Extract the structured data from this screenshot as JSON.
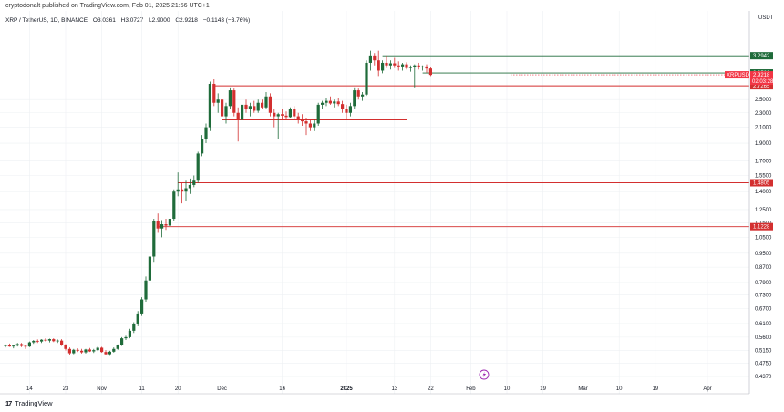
{
  "header": {
    "published_line": "cryptodonalt published on TradingView.com, Feb 01, 2025 21:56 UTC+1"
  },
  "ohlc": {
    "symbol_line": "XRP / TetherUS, 1D, BINANCE",
    "open": "O3.0361",
    "high": "H3.0727",
    "low": "L2.9000",
    "close": "C2.9218",
    "change": "−0.1143 (−3.76%)"
  },
  "footer": {
    "brand": "TradingView",
    "logo": "17"
  },
  "colors": {
    "up": "#1f6b3a",
    "down": "#d32f2f",
    "green_level": "#1f6b3a",
    "red_level": "#d32f2f",
    "grid": "#eef0f3",
    "price_tag": "#f23645",
    "event_icon": "#9c27b0"
  },
  "chart_data": {
    "type": "candlestick",
    "currency_label": "USDT",
    "y_scale": "log",
    "ylim": [
      0.42,
      3.85
    ],
    "y_ticks": [
      "2.5000",
      "2.3000",
      "2.1000",
      "1.9000",
      "1.7000",
      "1.5500",
      "1.4000",
      "1.2500",
      "1.1500",
      "1.0500",
      "0.9500",
      "0.8700",
      "0.7900",
      "0.7300",
      "0.6700",
      "0.6100",
      "0.5600",
      "0.5150",
      "0.4750",
      "0.4370"
    ],
    "x_ticks": [
      {
        "label": "14",
        "bar": 6
      },
      {
        "label": "23",
        "bar": 15
      },
      {
        "label": "Nov",
        "bar": 24
      },
      {
        "label": "11",
        "bar": 34
      },
      {
        "label": "20",
        "bar": 43
      },
      {
        "label": "Dec",
        "bar": 54
      },
      {
        "label": "16",
        "bar": 69
      },
      {
        "label": "2025",
        "bar": 85
      },
      {
        "label": "13",
        "bar": 97
      },
      {
        "label": "22",
        "bar": 106
      },
      {
        "label": "Feb",
        "bar": 116
      },
      {
        "label": "10",
        "bar": 125
      },
      {
        "label": "19",
        "bar": 134
      },
      {
        "label": "Mar",
        "bar": 144
      },
      {
        "label": "10",
        "bar": 153
      },
      {
        "label": "19",
        "bar": 162
      },
      {
        "label": "Apr",
        "bar": 175
      }
    ],
    "candles": [
      [
        0.53,
        0.535,
        0.525,
        0.532
      ],
      [
        0.532,
        0.538,
        0.527,
        0.528
      ],
      [
        0.528,
        0.534,
        0.522,
        0.531
      ],
      [
        0.531,
        0.54,
        0.528,
        0.536
      ],
      [
        0.536,
        0.54,
        0.526,
        0.53
      ],
      [
        0.53,
        0.534,
        0.52,
        0.528
      ],
      [
        0.528,
        0.545,
        0.526,
        0.542
      ],
      [
        0.542,
        0.55,
        0.537,
        0.547
      ],
      [
        0.547,
        0.552,
        0.54,
        0.545
      ],
      [
        0.545,
        0.553,
        0.54,
        0.551
      ],
      [
        0.551,
        0.556,
        0.545,
        0.548
      ],
      [
        0.548,
        0.555,
        0.542,
        0.553
      ],
      [
        0.553,
        0.556,
        0.543,
        0.546
      ],
      [
        0.546,
        0.552,
        0.54,
        0.548
      ],
      [
        0.548,
        0.553,
        0.53,
        0.533
      ],
      [
        0.533,
        0.536,
        0.515,
        0.52
      ],
      [
        0.52,
        0.525,
        0.5,
        0.506
      ],
      [
        0.506,
        0.52,
        0.503,
        0.517
      ],
      [
        0.517,
        0.522,
        0.51,
        0.514
      ],
      [
        0.514,
        0.52,
        0.505,
        0.509
      ],
      [
        0.509,
        0.52,
        0.505,
        0.518
      ],
      [
        0.518,
        0.523,
        0.51,
        0.512
      ],
      [
        0.512,
        0.52,
        0.507,
        0.516
      ],
      [
        0.516,
        0.528,
        0.513,
        0.524
      ],
      [
        0.524,
        0.527,
        0.508,
        0.51
      ],
      [
        0.51,
        0.516,
        0.5,
        0.503
      ],
      [
        0.503,
        0.514,
        0.498,
        0.511
      ],
      [
        0.511,
        0.525,
        0.508,
        0.52
      ],
      [
        0.52,
        0.535,
        0.517,
        0.532
      ],
      [
        0.532,
        0.56,
        0.53,
        0.556
      ],
      [
        0.556,
        0.565,
        0.55,
        0.56
      ],
      [
        0.56,
        0.59,
        0.556,
        0.583
      ],
      [
        0.583,
        0.615,
        0.575,
        0.61
      ],
      [
        0.61,
        0.66,
        0.6,
        0.65
      ],
      [
        0.65,
        0.72,
        0.64,
        0.71
      ],
      [
        0.71,
        0.82,
        0.7,
        0.8
      ],
      [
        0.8,
        0.95,
        0.78,
        0.93
      ],
      [
        0.93,
        1.18,
        0.9,
        1.16
      ],
      [
        1.16,
        1.22,
        1.08,
        1.11
      ],
      [
        1.11,
        1.17,
        1.05,
        1.14
      ],
      [
        1.14,
        1.18,
        1.1,
        1.13
      ],
      [
        1.13,
        1.2,
        1.1,
        1.18
      ],
      [
        1.18,
        1.42,
        1.16,
        1.4
      ],
      [
        1.4,
        1.58,
        1.36,
        1.42
      ],
      [
        1.42,
        1.48,
        1.3,
        1.4
      ],
      [
        1.4,
        1.5,
        1.32,
        1.43
      ],
      [
        1.43,
        1.52,
        1.38,
        1.46
      ],
      [
        1.46,
        1.55,
        1.44,
        1.5
      ],
      [
        1.5,
        1.8,
        1.48,
        1.78
      ],
      [
        1.78,
        2.0,
        1.75,
        1.95
      ],
      [
        1.95,
        2.15,
        1.9,
        2.1
      ],
      [
        2.1,
        2.8,
        2.05,
        2.76
      ],
      [
        2.76,
        2.84,
        2.4,
        2.45
      ],
      [
        2.45,
        2.6,
        2.3,
        2.5
      ],
      [
        2.5,
        2.55,
        2.2,
        2.25
      ],
      [
        2.25,
        2.45,
        2.15,
        2.4
      ],
      [
        2.4,
        2.7,
        2.35,
        2.65
      ],
      [
        2.65,
        2.68,
        2.25,
        2.3
      ],
      [
        2.3,
        2.38,
        1.92,
        2.2
      ],
      [
        2.2,
        2.45,
        2.15,
        2.42
      ],
      [
        2.42,
        2.5,
        2.3,
        2.35
      ],
      [
        2.35,
        2.45,
        2.25,
        2.4
      ],
      [
        2.4,
        2.48,
        2.3,
        2.33
      ],
      [
        2.33,
        2.5,
        2.3,
        2.45
      ],
      [
        2.45,
        2.5,
        2.35,
        2.38
      ],
      [
        2.38,
        2.62,
        2.35,
        2.55
      ],
      [
        2.55,
        2.6,
        2.25,
        2.3
      ],
      [
        2.3,
        2.35,
        2.1,
        2.25
      ],
      [
        2.25,
        2.3,
        1.95,
        2.28
      ],
      [
        2.28,
        2.35,
        2.2,
        2.26
      ],
      [
        2.26,
        2.32,
        2.2,
        2.24
      ],
      [
        2.24,
        2.38,
        2.22,
        2.35
      ],
      [
        2.35,
        2.4,
        2.2,
        2.25
      ],
      [
        2.25,
        2.3,
        2.15,
        2.2
      ],
      [
        2.2,
        2.28,
        2.12,
        2.18
      ],
      [
        2.18,
        2.22,
        2.0,
        2.15
      ],
      [
        2.15,
        2.2,
        2.05,
        2.1
      ],
      [
        2.1,
        2.2,
        2.05,
        2.15
      ],
      [
        2.15,
        2.45,
        2.12,
        2.42
      ],
      [
        2.42,
        2.48,
        2.35,
        2.45
      ],
      [
        2.45,
        2.52,
        2.4,
        2.48
      ],
      [
        2.48,
        2.55,
        2.42,
        2.44
      ],
      [
        2.44,
        2.5,
        2.38,
        2.47
      ],
      [
        2.47,
        2.52,
        2.4,
        2.43
      ],
      [
        2.43,
        2.48,
        2.3,
        2.35
      ],
      [
        2.35,
        2.42,
        2.2,
        2.3
      ],
      [
        2.3,
        2.45,
        2.25,
        2.4
      ],
      [
        2.4,
        2.7,
        2.35,
        2.65
      ],
      [
        2.65,
        2.68,
        2.5,
        2.55
      ],
      [
        2.55,
        2.62,
        2.48,
        2.58
      ],
      [
        2.58,
        3.2,
        2.56,
        3.15
      ],
      [
        3.15,
        3.4,
        3.0,
        3.3
      ],
      [
        3.3,
        3.35,
        3.1,
        3.2
      ],
      [
        3.2,
        3.4,
        2.9,
        3.0
      ],
      [
        3.0,
        3.2,
        2.95,
        3.15
      ],
      [
        3.15,
        3.3,
        3.05,
        3.1
      ],
      [
        3.1,
        3.2,
        3.02,
        3.14
      ],
      [
        3.14,
        3.25,
        3.05,
        3.1
      ],
      [
        3.1,
        3.18,
        3.0,
        3.08
      ],
      [
        3.08,
        3.15,
        3.0,
        3.12
      ],
      [
        3.12,
        3.16,
        3.02,
        3.05
      ],
      [
        3.05,
        3.1,
        2.98,
        3.07
      ],
      [
        3.07,
        3.12,
        2.7,
        3.1
      ],
      [
        3.1,
        3.15,
        3.02,
        3.06
      ],
      [
        3.06,
        3.1,
        3.0,
        3.08
      ],
      [
        3.08,
        3.12,
        2.96,
        3.04
      ],
      [
        3.04,
        3.07,
        2.9,
        2.92
      ]
    ],
    "horizontal_levels": [
      {
        "name": "range-top",
        "price": 2.7265,
        "color": "red",
        "from_bar": 52,
        "to_bar": 200
      },
      {
        "name": "range-bottom",
        "price": 2.2,
        "color": "red",
        "from_bar": 54,
        "to_bar": 100
      },
      {
        "name": "green-top",
        "price": 3.2942,
        "color": "green",
        "from_bar": 94,
        "to_bar": 200
      },
      {
        "name": "green-mid",
        "price": 2.9562,
        "color": "green",
        "from_bar": 104,
        "to_bar": 200
      },
      {
        "name": "support-1",
        "price": 1.4805,
        "color": "red",
        "from_bar": 43,
        "to_bar": 200
      },
      {
        "name": "support-2",
        "price": 1.1228,
        "color": "red",
        "from_bar": 38,
        "to_bar": 200
      }
    ],
    "price_tags": [
      {
        "label": "3.2942",
        "price": 3.2942,
        "color": "green"
      },
      {
        "label": "2.9562",
        "price": 2.9562,
        "color": "green"
      },
      {
        "label": "2.7265",
        "price": 2.7265,
        "color": "red"
      },
      {
        "label": "1.4805",
        "price": 1.4805,
        "color": "red"
      },
      {
        "label": "1.1228",
        "price": 1.1228,
        "color": "red"
      }
    ],
    "last_price": {
      "symbol": "XRPUSDT",
      "price": "2.9218",
      "countdown": "02:03:28"
    }
  }
}
